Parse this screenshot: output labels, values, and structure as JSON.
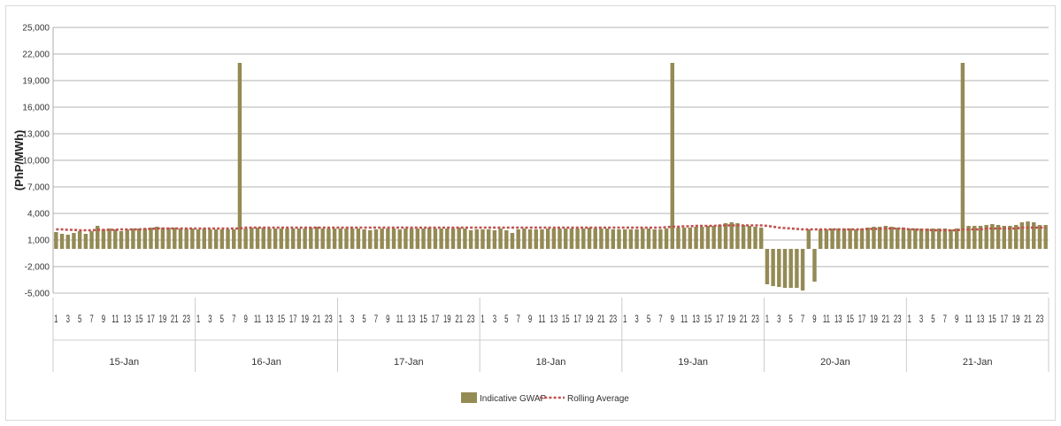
{
  "chart_data": {
    "type": "bar",
    "ylabel": "(PhP/MWh)",
    "ylim": [
      -5000,
      25000
    ],
    "yticks": [
      "25,000",
      "22,000",
      "19,000",
      "16,000",
      "13,000",
      "10,000",
      "7,000",
      "4,000",
      "1,000",
      "-2,000",
      "-5,000"
    ],
    "ytick_values": [
      25000,
      22000,
      19000,
      16000,
      13000,
      10000,
      7000,
      4000,
      1000,
      -2000,
      -5000
    ],
    "days": [
      "15-Jan",
      "16-Jan",
      "17-Jan",
      "18-Jan",
      "19-Jan",
      "20-Jan",
      "21-Jan"
    ],
    "hour_ticks": [
      "1",
      "3",
      "5",
      "7",
      "9",
      "11",
      "13",
      "15",
      "17",
      "19",
      "21",
      "23"
    ],
    "grid": true,
    "legend_position": "bottom-center",
    "series": [
      {
        "name": "Indicative GWAP",
        "kind": "bar",
        "color": "#948a54",
        "values": [
          1900,
          1700,
          1600,
          1800,
          2000,
          1700,
          2000,
          2600,
          2200,
          2300,
          2200,
          2000,
          2200,
          2300,
          2300,
          2300,
          2400,
          2500,
          2400,
          2400,
          2400,
          2300,
          2300,
          2300,
          2200,
          2300,
          2200,
          2200,
          2200,
          2200,
          2200,
          21000,
          2300,
          2400,
          2400,
          2400,
          2300,
          2300,
          2300,
          2300,
          2300,
          2300,
          2300,
          2400,
          2500,
          2300,
          2300,
          2300,
          2300,
          2300,
          2300,
          2300,
          2200,
          2100,
          2200,
          2300,
          2300,
          2300,
          2200,
          2300,
          2300,
          2300,
          2300,
          2400,
          2300,
          2300,
          2300,
          2300,
          2400,
          2300,
          2100,
          2200,
          2200,
          2200,
          2100,
          2300,
          2100,
          1800,
          2200,
          2300,
          2200,
          2200,
          2200,
          2300,
          2300,
          2300,
          2300,
          2300,
          2300,
          2300,
          2400,
          2300,
          2300,
          2300,
          2200,
          2200,
          2200,
          2200,
          2200,
          2300,
          2300,
          2200,
          2200,
          2300,
          21000,
          2400,
          2400,
          2400,
          2500,
          2500,
          2600,
          2600,
          2700,
          2900,
          3000,
          2900,
          2700,
          2600,
          2500,
          2400,
          -4000,
          -4200,
          -4300,
          -4400,
          -4400,
          -4400,
          -4700,
          2200,
          -3700,
          2200,
          2200,
          2300,
          2300,
          2300,
          2300,
          2200,
          2300,
          2400,
          2500,
          2500,
          2600,
          2500,
          2400,
          2400,
          2300,
          2300,
          2300,
          2300,
          2300,
          2300,
          2300,
          2200,
          2300,
          21000,
          2600,
          2600,
          2600,
          2700,
          2800,
          2700,
          2600,
          2600,
          2700,
          3000,
          3100,
          3000,
          2700,
          2700
        ]
      },
      {
        "name": "Rolling Average",
        "kind": "line",
        "color": "#c0504d",
        "values": [
          2200,
          2200,
          2150,
          2150,
          2100,
          2100,
          2100,
          2150,
          2150,
          2150,
          2150,
          2200,
          2200,
          2200,
          2200,
          2250,
          2250,
          2300,
          2300,
          2300,
          2300,
          2300,
          2300,
          2300,
          2300,
          2300,
          2300,
          2300,
          2300,
          2300,
          2300,
          2300,
          2400,
          2400,
          2400,
          2400,
          2400,
          2400,
          2400,
          2400,
          2400,
          2400,
          2400,
          2400,
          2400,
          2400,
          2400,
          2400,
          2400,
          2400,
          2400,
          2400,
          2400,
          2400,
          2400,
          2400,
          2400,
          2400,
          2400,
          2400,
          2400,
          2400,
          2400,
          2400,
          2400,
          2400,
          2400,
          2400,
          2400,
          2400,
          2400,
          2400,
          2400,
          2400,
          2400,
          2400,
          2400,
          2400,
          2400,
          2400,
          2400,
          2400,
          2400,
          2400,
          2400,
          2400,
          2400,
          2400,
          2400,
          2400,
          2400,
          2400,
          2400,
          2400,
          2400,
          2400,
          2400,
          2400,
          2400,
          2400,
          2400,
          2400,
          2400,
          2450,
          2500,
          2500,
          2550,
          2550,
          2600,
          2600,
          2600,
          2600,
          2650,
          2650,
          2650,
          2650,
          2650,
          2650,
          2650,
          2650,
          2600,
          2500,
          2400,
          2350,
          2300,
          2250,
          2200,
          2200,
          2200,
          2200,
          2200,
          2200,
          2200,
          2200,
          2200,
          2200,
          2200,
          2250,
          2250,
          2250,
          2300,
          2300,
          2300,
          2300,
          2200,
          2200,
          2150,
          2150,
          2100,
          2100,
          2100,
          2100,
          2100,
          2200,
          2200,
          2200,
          2200,
          2300,
          2300,
          2300,
          2300,
          2300,
          2300,
          2400,
          2400,
          2400,
          2400,
          2400
        ]
      }
    ]
  }
}
